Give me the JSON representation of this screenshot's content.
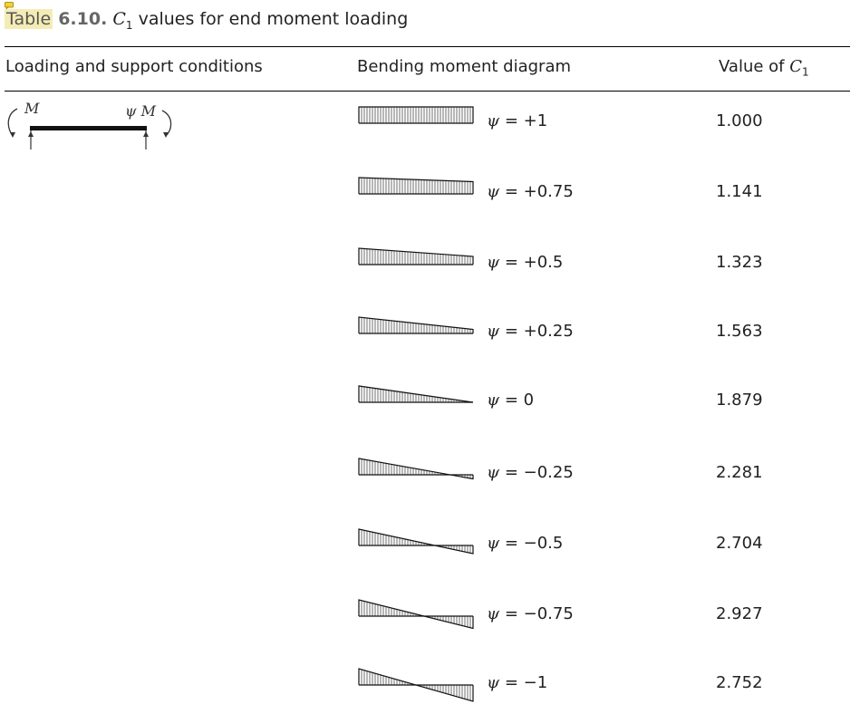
{
  "caption": {
    "label": "Table",
    "number": "6.10.",
    "symbol": "C",
    "subscript": "1",
    "title": "values for end moment loading"
  },
  "headers": {
    "loading": "Loading and support conditions",
    "diagram": "Bending moment diagram",
    "value_prefix": "Value of",
    "value_symbol": "C",
    "value_subscript": "1"
  },
  "beam_labels": {
    "left": "M",
    "right": "ψ M"
  },
  "rows": [
    {
      "psi": 1,
      "psi_text": "= +1",
      "value": "1.000"
    },
    {
      "psi": 0.75,
      "psi_text": "= +0.75",
      "value": "1.141"
    },
    {
      "psi": 0.5,
      "psi_text": "= +0.5",
      "value": "1.323"
    },
    {
      "psi": 0.25,
      "psi_text": "= +0.25",
      "value": "1.563"
    },
    {
      "psi": 0,
      "psi_text": "= 0",
      "value": "1.879"
    },
    {
      "psi": -0.25,
      "psi_text": "= −0.25",
      "value": "2.281"
    },
    {
      "psi": -0.5,
      "psi_text": "= −0.5",
      "value": "2.704"
    },
    {
      "psi": -0.75,
      "psi_text": "= −0.75",
      "value": "2.927"
    },
    {
      "psi": -1,
      "psi_text": "= −1",
      "value": "2.752"
    }
  ],
  "psi_symbol": "ψ"
}
